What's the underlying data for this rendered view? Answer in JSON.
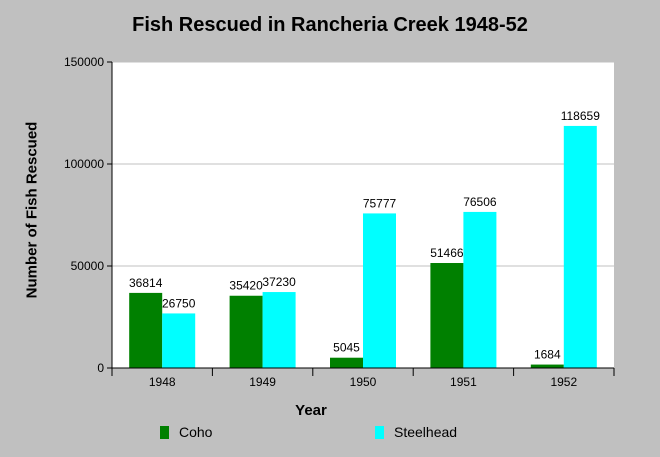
{
  "chart_data": {
    "type": "bar",
    "title": "Fish Rescued in Rancheria Creek 1948-52",
    "xlabel": "Year",
    "ylabel": "Number of Fish Rescued",
    "categories": [
      "1948",
      "1949",
      "1950",
      "1951",
      "1952"
    ],
    "series": [
      {
        "name": "Coho",
        "color": "#008000",
        "values": [
          36814,
          35420,
          5045,
          51466,
          1684
        ]
      },
      {
        "name": "Steelhead",
        "color": "#00ffff",
        "values": [
          26750,
          37230,
          75777,
          76506,
          118659
        ]
      }
    ],
    "ylim": [
      0,
      150000
    ],
    "yticks": [
      "0",
      "50000",
      "100000",
      "150000"
    ],
    "grid": true,
    "legend_position": "bottom",
    "background_color": "#c0c0c0",
    "plot_background_color": "#ffffff"
  }
}
